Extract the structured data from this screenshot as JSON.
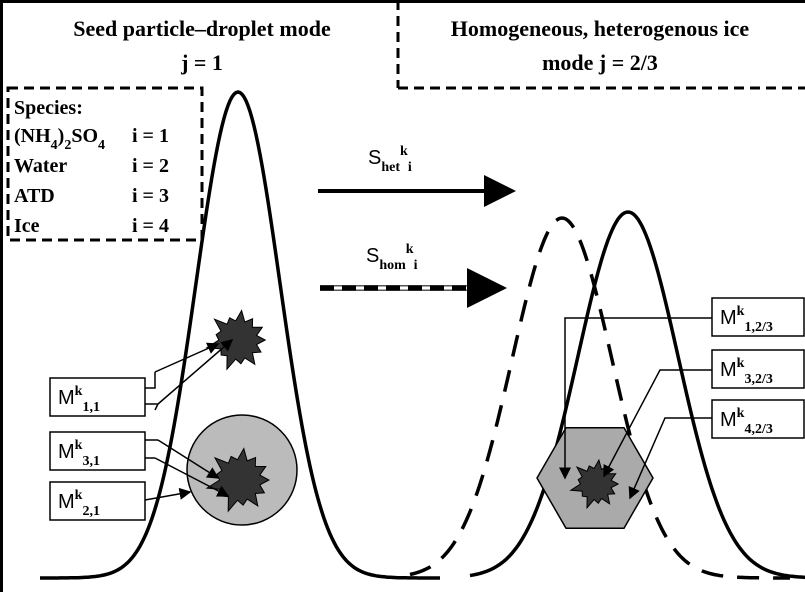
{
  "header": {
    "left": [
      "Seed particle–droplet mode",
      "j = 1"
    ],
    "right": [
      "Homogeneous, heterogenous ice",
      "mode j = 2/3"
    ]
  },
  "species": {
    "title": "Species:",
    "rows": [
      {
        "name": [
          "(NH",
          "4",
          ")",
          "2",
          "SO",
          "4"
        ],
        "index": "i = 1"
      },
      {
        "name": [
          "Water"
        ],
        "index": "i = 2"
      },
      {
        "name": [
          "ATD"
        ],
        "index": "i = 3"
      },
      {
        "name": [
          "Ice"
        ],
        "index": "i = 4"
      }
    ]
  },
  "rates": [
    {
      "symbol": "S",
      "sub": "het",
      "sup": "k",
      "index": "i"
    },
    {
      "symbol": "S",
      "sub": "hom",
      "sup": "k",
      "index": "i"
    }
  ],
  "labels": [
    {
      "symbol": "M",
      "sup": "k",
      "sub": "1,1"
    },
    {
      "symbol": "M",
      "sup": "k",
      "sub": "3,1"
    },
    {
      "symbol": "M",
      "sup": "k",
      "sub": "2,1"
    },
    {
      "symbol": "M",
      "sup": "k",
      "sub": "1,2/3"
    },
    {
      "symbol": "M",
      "sup": "k",
      "sub": "3,2/3"
    },
    {
      "symbol": "M",
      "sup": "k",
      "sub": "4,2/3"
    }
  ]
}
